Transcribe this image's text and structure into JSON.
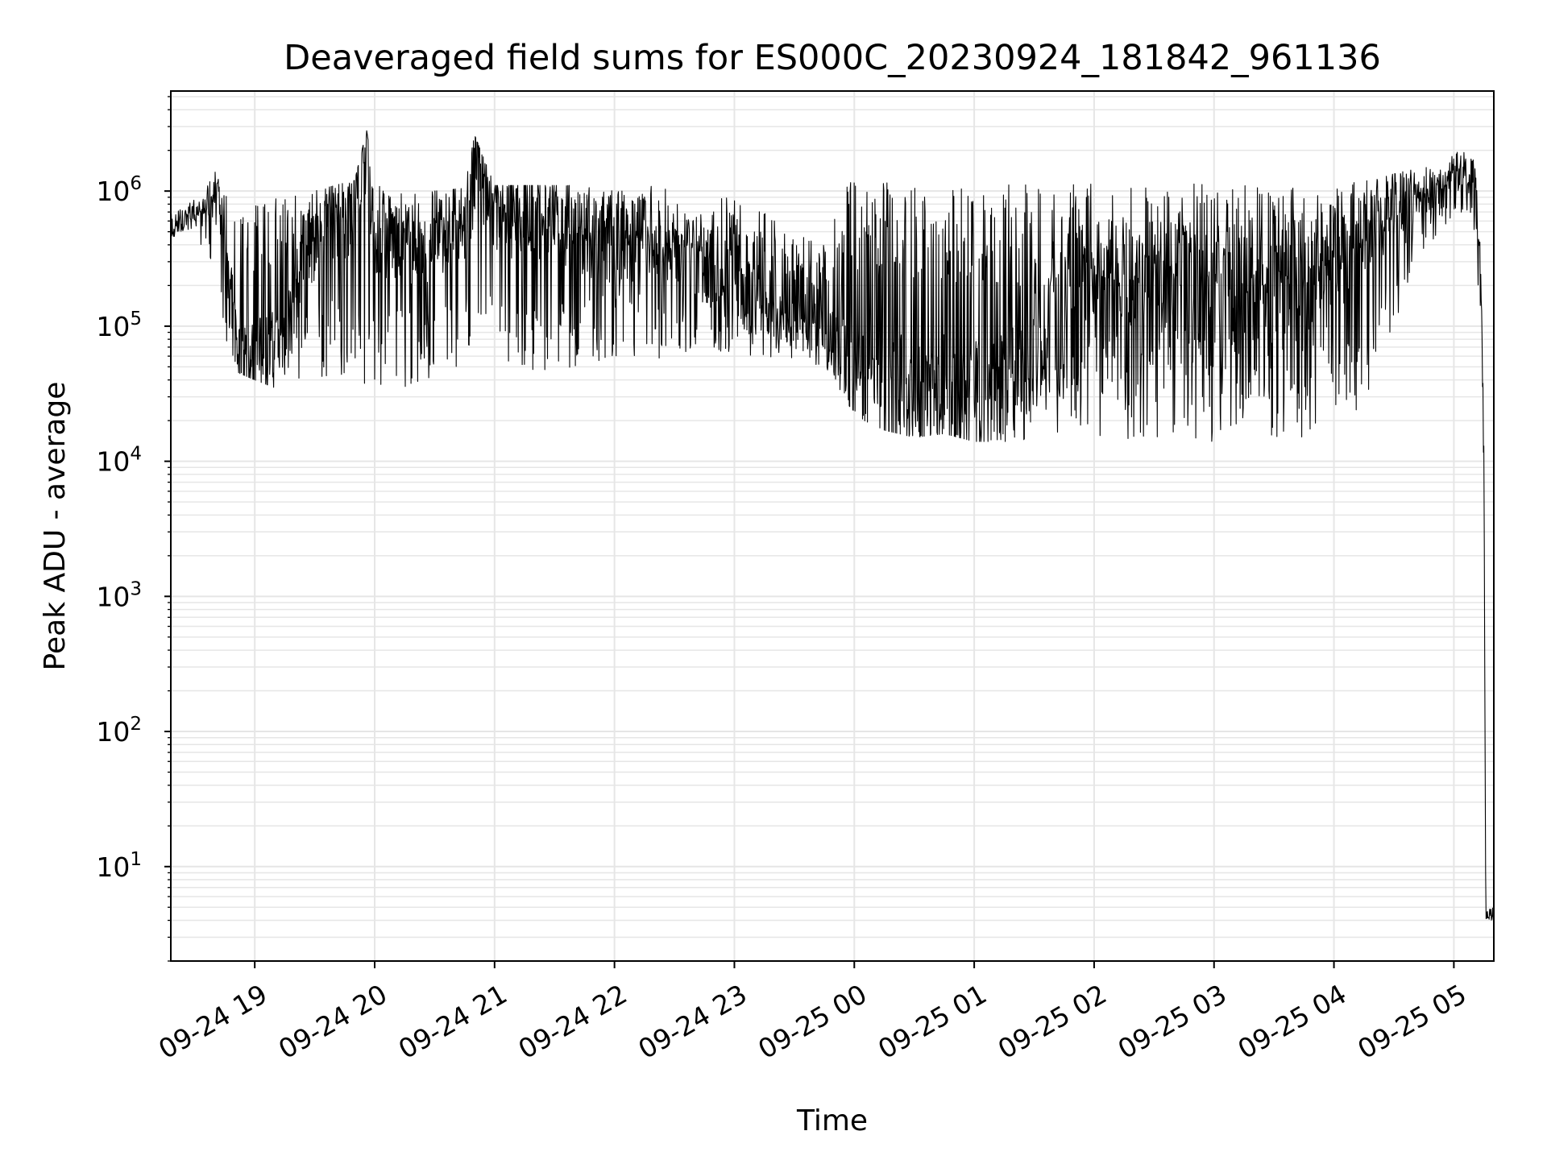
{
  "chart_data": {
    "type": "line",
    "title": "Deaveraged field sums for ES000C_20230924_181842_961136",
    "xlabel": "Time",
    "ylabel": "Peak ADU - average",
    "y_scale": "log",
    "ylim": [
      2,
      5500000
    ],
    "xlim": [
      "2023-09-24 18:18",
      "2023-09-25 05:20"
    ],
    "grid": true,
    "line_color": "#000000",
    "grid_color": "#e6e6e6",
    "x_ticks": [
      {
        "value": "2023-09-24 19:00",
        "label": "09-24 19"
      },
      {
        "value": "2023-09-24 20:00",
        "label": "09-24 20"
      },
      {
        "value": "2023-09-24 21:00",
        "label": "09-24 21"
      },
      {
        "value": "2023-09-24 22:00",
        "label": "09-24 22"
      },
      {
        "value": "2023-09-24 23:00",
        "label": "09-24 23"
      },
      {
        "value": "2023-09-25 00:00",
        "label": "09-25 00"
      },
      {
        "value": "2023-09-25 01:00",
        "label": "09-25 01"
      },
      {
        "value": "2023-09-25 02:00",
        "label": "09-25 02"
      },
      {
        "value": "2023-09-25 03:00",
        "label": "09-25 03"
      },
      {
        "value": "2023-09-25 04:00",
        "label": "09-25 04"
      },
      {
        "value": "2023-09-25 05:00",
        "label": "09-25 05"
      }
    ],
    "y_ticks": [
      {
        "value": 10,
        "base": "10",
        "exp": "1"
      },
      {
        "value": 100,
        "base": "10",
        "exp": "2"
      },
      {
        "value": 1000,
        "base": "10",
        "exp": "3"
      },
      {
        "value": 10000,
        "base": "10",
        "exp": "4"
      },
      {
        "value": 100000,
        "base": "10",
        "exp": "5"
      },
      {
        "value": 1000000,
        "base": "10",
        "exp": "6"
      }
    ],
    "series": [
      {
        "x": [
          "2023-09-24 18:18",
          "2023-09-24 18:25",
          "2023-09-24 18:33",
          "2023-09-24 18:40",
          "2023-09-24 18:46",
          "2023-09-24 18:52",
          "2023-09-24 19:00",
          "2023-09-24 19:10",
          "2023-09-24 19:20",
          "2023-09-24 19:30",
          "2023-09-24 19:40",
          "2023-09-24 19:50",
          "2023-09-24 19:56",
          "2023-09-24 20:00",
          "2023-09-24 20:15",
          "2023-09-24 20:30",
          "2023-09-24 20:45",
          "2023-09-24 20:50",
          "2023-09-24 21:00",
          "2023-09-24 21:15",
          "2023-09-24 21:30",
          "2023-09-24 21:45",
          "2023-09-24 22:00",
          "2023-09-24 22:15",
          "2023-09-24 22:30",
          "2023-09-24 22:45",
          "2023-09-24 23:00",
          "2023-09-24 23:15",
          "2023-09-24 23:30",
          "2023-09-24 23:45",
          "2023-09-24 23:58",
          "2023-09-25 00:05",
          "2023-09-25 00:15",
          "2023-09-25 00:30",
          "2023-09-25 00:45",
          "2023-09-25 01:00",
          "2023-09-25 01:30",
          "2023-09-25 02:00",
          "2023-09-25 02:30",
          "2023-09-25 03:00",
          "2023-09-25 03:30",
          "2023-09-25 04:00",
          "2023-09-25 04:20",
          "2023-09-25 04:40",
          "2023-09-25 04:55",
          "2023-09-25 05:05",
          "2023-09-25 05:10",
          "2023-09-25 05:13",
          "2023-09-25 05:15",
          "2023-09-25 05:16",
          "2023-09-25 05:20"
        ],
        "y": [
          450000,
          700000,
          650000,
          1000000,
          250000,
          60000,
          55000,
          60000,
          150000,
          500000,
          700000,
          900000,
          2700000,
          600000,
          400000,
          500000,
          650000,
          2500000,
          800000,
          700000,
          600000,
          500000,
          400000,
          450000,
          350000,
          300000,
          200000,
          150000,
          120000,
          80000,
          60000,
          40000,
          30000,
          22000,
          20000,
          25000,
          60000,
          150000,
          200000,
          200000,
          180000,
          300000,
          700000,
          900000,
          1000000,
          1500000,
          1200000,
          300000,
          15000,
          4,
          4
        ],
        "band_high": [
          700000,
          800000,
          900000,
          1400000,
          900000,
          700000,
          800000,
          900000,
          950000,
          1000000,
          1100000,
          1200000,
          2800000,
          1100000,
          1000000,
          1000000,
          1050000,
          2600000,
          1100000,
          1100000,
          1100000,
          1100000,
          1100000,
          1100000,
          1050000,
          1000000,
          900000,
          700000,
          500000,
          400000,
          1300000,
          1200000,
          1150000,
          1150000,
          1150000,
          1150000,
          1150000,
          1150000,
          1150000,
          1150000,
          1150000,
          1150000,
          1200000,
          1500000,
          1600000,
          2300000,
          1800000,
          800000,
          20000,
          5,
          5
        ],
        "band_low": [
          450000,
          500000,
          400000,
          250000,
          70000,
          45000,
          40000,
          35000,
          40000,
          40000,
          45000,
          40000,
          35000,
          30000,
          35000,
          40000,
          50000,
          45000,
          50000,
          40000,
          45000,
          50000,
          55000,
          50000,
          55000,
          60000,
          60000,
          60000,
          55000,
          50000,
          25000,
          20000,
          17000,
          15000,
          16000,
          14000,
          14000,
          14000,
          14000,
          14000,
          14000,
          14000,
          30000,
          300000,
          500000,
          600000,
          500000,
          100000,
          8000,
          4,
          4
        ]
      }
    ]
  }
}
